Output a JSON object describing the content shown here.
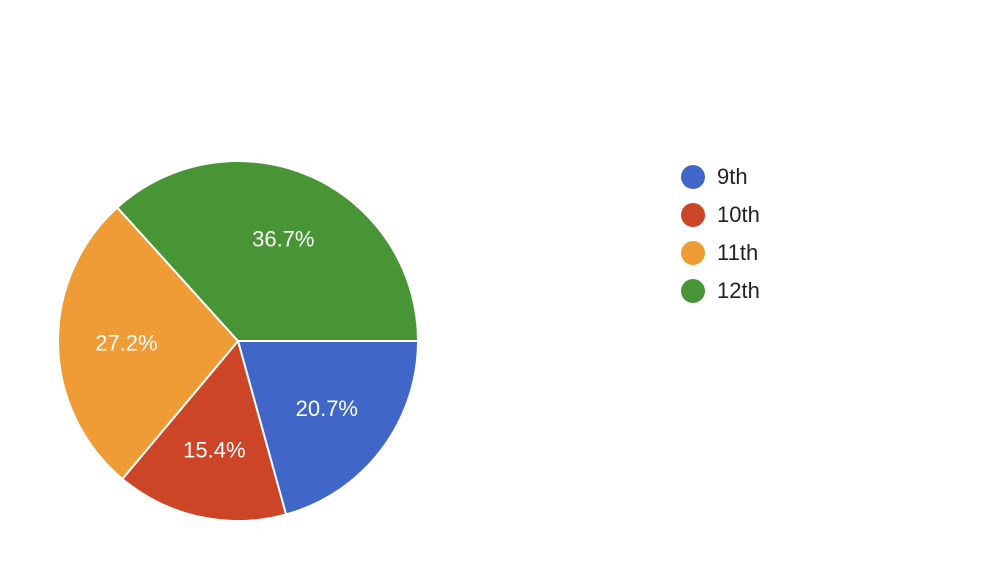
{
  "chart_data": {
    "type": "pie",
    "start_angle_deg": 90,
    "direction": "clockwise",
    "slices": [
      {
        "label": "9th",
        "value": 20.7,
        "display": "20.7%",
        "color": "#4066c7"
      },
      {
        "label": "10th",
        "value": 15.4,
        "display": "15.4%",
        "color": "#cc4527"
      },
      {
        "label": "11th",
        "value": 27.2,
        "display": "27.2%",
        "color": "#ef9c37"
      },
      {
        "label": "12th",
        "value": 36.7,
        "display": "36.7%",
        "color": "#479534"
      }
    ],
    "legend_position": "right"
  }
}
